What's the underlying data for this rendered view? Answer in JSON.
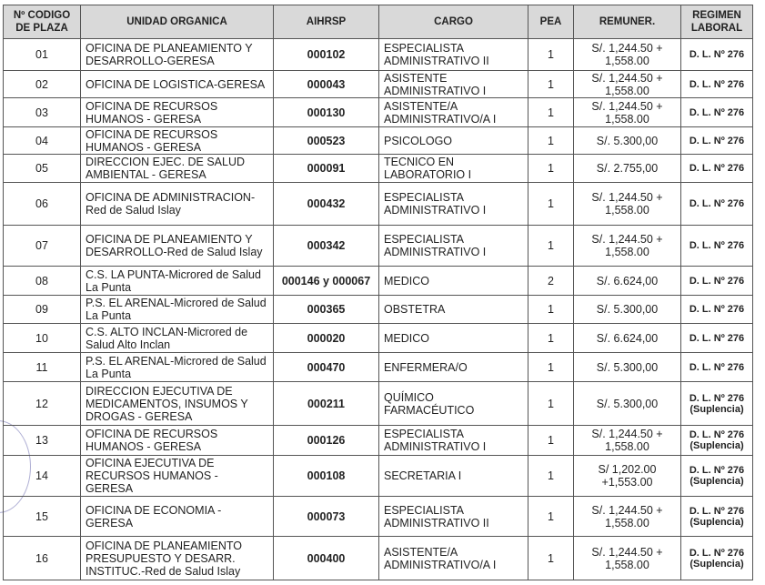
{
  "headers": [
    "Nº CODIGO DE PLAZA",
    "UNIDAD ORGANICA",
    "AIHRSP",
    "CARGO",
    "PEA",
    "REMUNER.",
    "REGIMEN LABORAL"
  ],
  "rows": [
    {
      "codigo": "01",
      "unidad": "OFICINA DE PLANEAMIENTO Y DESARROLLO-GERESA",
      "aihrsp": "000102",
      "cargo": "ESPECIALISTA ADMINISTRATIVO II",
      "pea": "1",
      "remuner": "S/. 1,244.50 + 1,558.00",
      "regimen": "D. L. Nº 276",
      "suplencia": ""
    },
    {
      "codigo": "02",
      "unidad": "OFICINA DE LOGISTICA-GERESA",
      "aihrsp": "000043",
      "cargo": "ASISTENTE ADMINISTRATIVO I",
      "pea": "1",
      "remuner": "S/. 1,244.50 + 1,558.00",
      "regimen": "D. L. Nº 276",
      "suplencia": ""
    },
    {
      "codigo": "03",
      "unidad": "OFICINA DE RECURSOS HUMANOS - GERESA",
      "aihrsp": "000130",
      "cargo": "ASISTENTE/A ADMINISTRATIVO/A I",
      "pea": "1",
      "remuner": "S/. 1,244.50 + 1,558.00",
      "regimen": "D. L. Nº 276",
      "suplencia": ""
    },
    {
      "codigo": "04",
      "unidad": "OFICINA DE RECURSOS HUMANOS - GERESA",
      "aihrsp": "000523",
      "cargo": "PSICOLOGO",
      "pea": "1",
      "remuner": "S/. 5.300,00",
      "regimen": "D. L. Nº 276",
      "suplencia": ""
    },
    {
      "codigo": "05",
      "unidad": "DIRECCION EJEC. DE SALUD AMBIENTAL - GERESA",
      "aihrsp": "000091",
      "cargo": "TECNICO EN LABORATORIO I",
      "pea": "1",
      "remuner": "S/. 2.755,00",
      "regimen": "D. L. Nº 276",
      "suplencia": ""
    },
    {
      "codigo": "06",
      "unidad": "OFICINA DE ADMINISTRACION-Red de Salud Islay",
      "aihrsp": "000432",
      "cargo": "ESPECIALISTA ADMINISTRATIVO I",
      "pea": "1",
      "remuner": "S/. 1,244.50 + 1,558.00",
      "regimen": "D. L. Nº 276",
      "suplencia": ""
    },
    {
      "codigo": "07",
      "unidad": "OFICINA DE PLANEAMIENTO Y DESARROLLO-Red de Salud Islay",
      "aihrsp": "000342",
      "cargo": "ESPECIALISTA ADMINISTRATIVO I",
      "pea": "1",
      "remuner": "S/. 1,244.50 + 1,558.00",
      "regimen": "D. L. Nº 276",
      "suplencia": ""
    },
    {
      "codigo": "08",
      "unidad": "C.S. LA PUNTA-Microred de Salud La Punta",
      "aihrsp": "000146 y 000067",
      "cargo": "MEDICO",
      "pea": "2",
      "remuner": "S/. 6.624,00",
      "regimen": "D. L. Nº 276",
      "suplencia": ""
    },
    {
      "codigo": "09",
      "unidad": "P.S. EL ARENAL-Microred de Salud La Punta",
      "aihrsp": "000365",
      "cargo": "OBSTETRA",
      "pea": "1",
      "remuner": "S/. 5.300,00",
      "regimen": "D. L. Nº 276",
      "suplencia": ""
    },
    {
      "codigo": "10",
      "unidad": "C.S. ALTO INCLAN-Microred de Salud Alto Inclan",
      "aihrsp": "000020",
      "cargo": "MEDICO",
      "pea": "1",
      "remuner": "S/. 6.624,00",
      "regimen": "D. L. Nº 276",
      "suplencia": ""
    },
    {
      "codigo": "11",
      "unidad": "P.S. EL ARENAL-Microred de Salud La Punta",
      "aihrsp": "000470",
      "cargo": "ENFERMERA/O",
      "pea": "1",
      "remuner": "S/. 5.300,00",
      "regimen": "D. L. Nº 276",
      "suplencia": ""
    },
    {
      "codigo": "12",
      "unidad": "DIRECCION EJECUTIVA DE MEDICAMENTOS, INSUMOS Y DROGAS - GERESA",
      "aihrsp": "000211",
      "cargo": "QUÍMICO FARMACÉUTICO",
      "pea": "1",
      "remuner": "S/. 5.300,00",
      "regimen": "D. L. Nº 276",
      "suplencia": "(Suplencia)"
    },
    {
      "codigo": "13",
      "unidad": "OFICINA DE RECURSOS HUMANOS - GERESA",
      "aihrsp": "000126",
      "cargo": "ESPECIALISTA ADMINISTRATIVO I",
      "pea": "1",
      "remuner": "S/. 1,244.50 + 1,558.00",
      "regimen": "D. L. Nº 276",
      "suplencia": "(Suplencia)"
    },
    {
      "codigo": "14",
      "unidad": "OFICINA EJECUTIVA DE RECURSOS HUMANOS - GERESA",
      "aihrsp": "000108",
      "cargo": "SECRETARIA I",
      "pea": "1",
      "remuner": "S/ 1,202.00 +1,553.00",
      "regimen": "D. L. Nº 276",
      "suplencia": "(Suplencia)"
    },
    {
      "codigo": "15",
      "unidad": "OFICINA DE ECONOMIA - GERESA",
      "aihrsp": "000073",
      "cargo": "ESPECIALISTA ADMINISTRATIVO II",
      "pea": "1",
      "remuner": "S/. 1,244.50 + 1,558.00",
      "regimen": "D. L. Nº 276",
      "suplencia": "(Suplencia)"
    },
    {
      "codigo": "16",
      "unidad": "OFICINA DE PLANEAMIENTO PRESUPUESTO Y DESARR. INSTITUC.-Red de Salud Islay",
      "aihrsp": "000400",
      "cargo": "ASISTENTE/A ADMINISTRATIVO/A I",
      "pea": "1",
      "remuner": "S/. 1,244.50 + 1,558.00",
      "regimen": "D. L. Nº 276",
      "suplencia": "(Suplencia)"
    }
  ]
}
